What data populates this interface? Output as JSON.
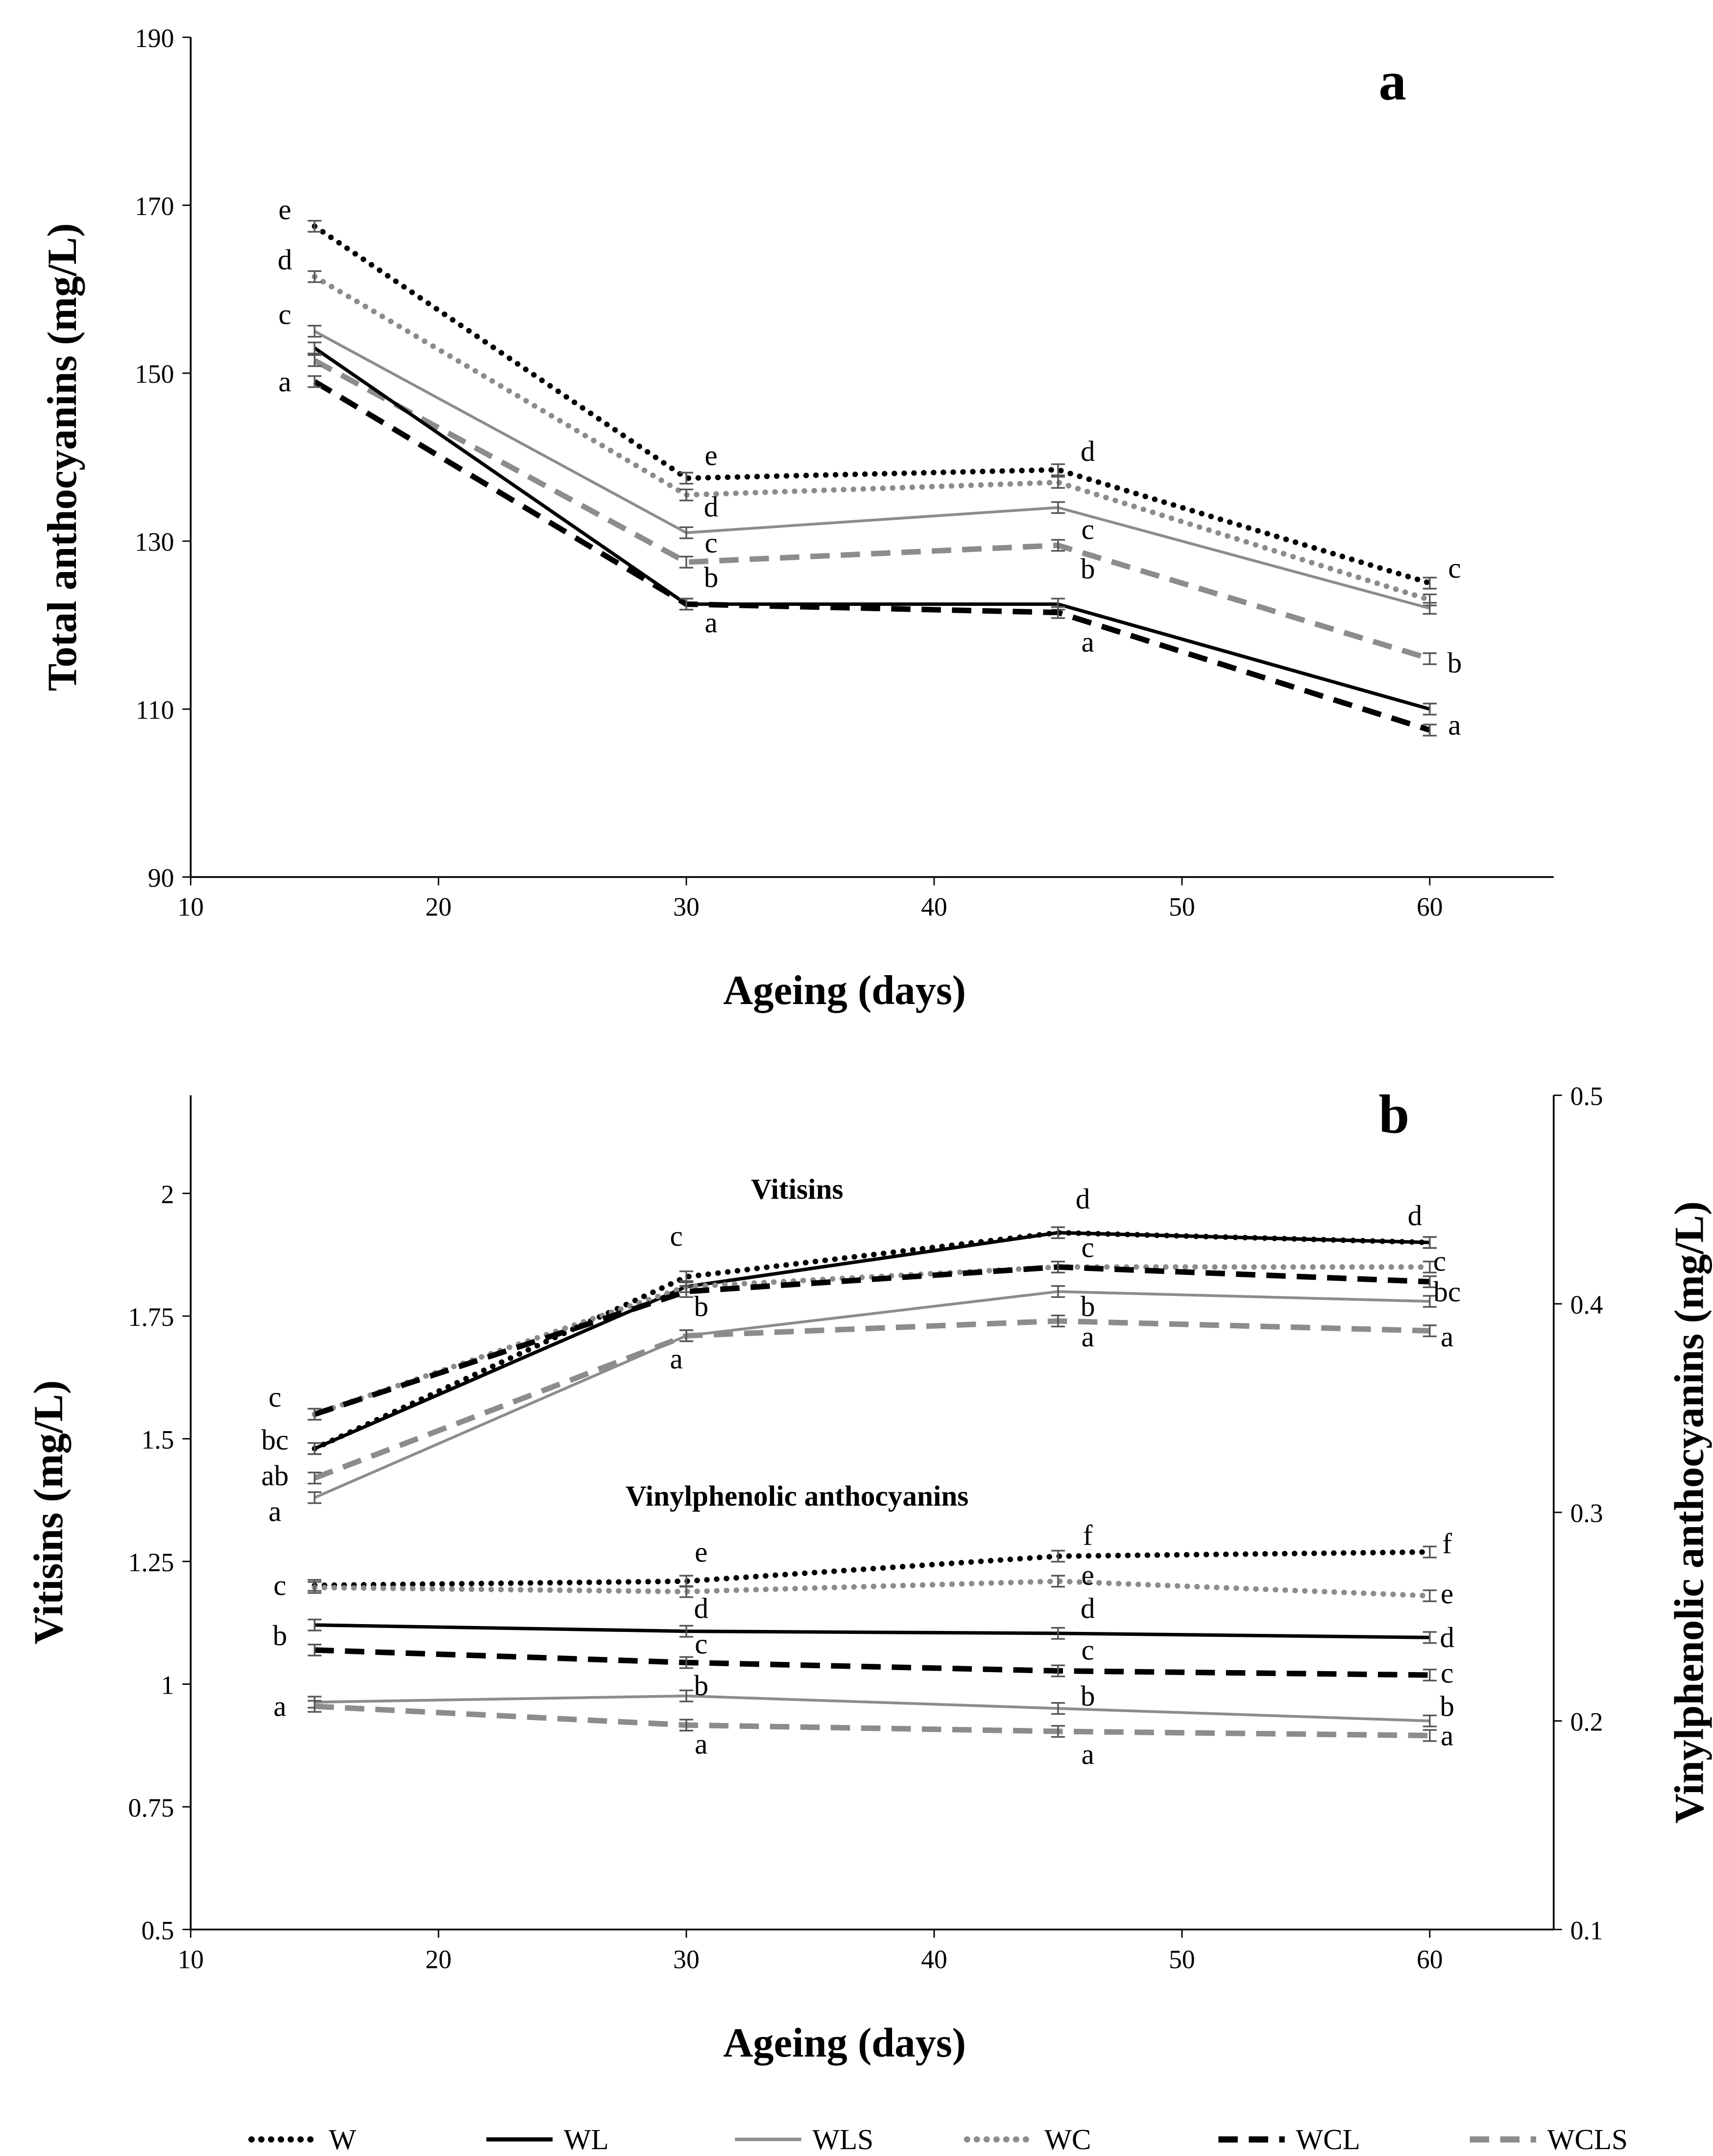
{
  "legend": [
    "W",
    "WL",
    "WLS",
    "WC",
    "WCL",
    "WCLS"
  ],
  "styles": {
    "W": {
      "color": "#000000",
      "dash": "dot"
    },
    "WL": {
      "color": "#000000",
      "dash": "solid"
    },
    "WLS": {
      "color": "#8c8c8c",
      "dash": "solid"
    },
    "WC": {
      "color": "#8c8c8c",
      "dash": "dot"
    },
    "WCL": {
      "color": "#000000",
      "dash": "dash"
    },
    "WCLS": {
      "color": "#8c8c8c",
      "dash": "dash"
    }
  },
  "chart_data": [
    {
      "type": "line",
      "panel_label": "a",
      "xlabel": "Ageing (days)",
      "ylabel": "Total anthocyanins (mg/L)",
      "xlim": [
        10,
        65
      ],
      "xticks": [
        10,
        20,
        30,
        40,
        50,
        60
      ],
      "ylim": [
        90,
        190
      ],
      "yticks": [
        90,
        110,
        130,
        150,
        170,
        190
      ],
      "x": [
        15,
        30,
        45,
        60
      ],
      "series": [
        {
          "name": "W",
          "values": [
            167.5,
            137.5,
            138.5,
            125
          ]
        },
        {
          "name": "WC",
          "values": [
            161.5,
            135.5,
            137,
            123
          ]
        },
        {
          "name": "WLS",
          "values": [
            155,
            131,
            134,
            122
          ]
        },
        {
          "name": "WCLS",
          "values": [
            151.5,
            127.5,
            129.5,
            116
          ]
        },
        {
          "name": "WL",
          "values": [
            153,
            122.5,
            122.5,
            110
          ]
        },
        {
          "name": "WCL",
          "values": [
            149,
            122.5,
            121.5,
            107.5
          ]
        }
      ],
      "annotations": [
        {
          "x": 13.8,
          "y": 169.5,
          "text": "e"
        },
        {
          "x": 13.8,
          "y": 163.5,
          "text": "d"
        },
        {
          "x": 13.8,
          "y": 157,
          "text": "c"
        },
        {
          "x": 13.8,
          "y": 149,
          "text": "a"
        },
        {
          "x": 31,
          "y": 140.2,
          "text": "e"
        },
        {
          "x": 31,
          "y": 134.1,
          "text": "d"
        },
        {
          "x": 31,
          "y": 129.8,
          "text": "c"
        },
        {
          "x": 31,
          "y": 125.7,
          "text": "b"
        },
        {
          "x": 31,
          "y": 120.3,
          "text": "a"
        },
        {
          "x": 46.2,
          "y": 140.7,
          "text": "d"
        },
        {
          "x": 46.2,
          "y": 131.4,
          "text": "c"
        },
        {
          "x": 46.2,
          "y": 126.7,
          "text": "b"
        },
        {
          "x": 46.2,
          "y": 118,
          "text": "a"
        },
        {
          "x": 61,
          "y": 126.8,
          "text": "c"
        },
        {
          "x": 61,
          "y": 115.5,
          "text": "b"
        },
        {
          "x": 61,
          "y": 108.1,
          "text": "a"
        }
      ]
    },
    {
      "type": "line",
      "panel_label": "b",
      "xlabel": "Ageing (days)",
      "ylabel": "Vitisins (mg/L)",
      "ylabel_right": "Vinylphenolic anthocyanins (mg/L)",
      "xlim": [
        10,
        65
      ],
      "xticks": [
        10,
        20,
        30,
        40,
        50,
        60
      ],
      "ylim": [
        0.5,
        2.2
      ],
      "yticks": [
        "0.5",
        "0.75",
        "1",
        "1.25",
        "1.5",
        "1.75",
        "2"
      ],
      "ylim_right": [
        0.1,
        0.5
      ],
      "yticks_right": [
        "0.1",
        "0.2",
        "0.3",
        "0.4",
        "0.5"
      ],
      "group_titles": [
        "Vitisins",
        "Vinylphenolic anthocyanins"
      ],
      "x": [
        15,
        30,
        45,
        60
      ],
      "series": [
        {
          "name": "W",
          "group": "Vitisins",
          "axis": "left",
          "values": [
            1.48,
            1.83,
            1.92,
            1.9
          ]
        },
        {
          "name": "WL",
          "group": "Vitisins",
          "axis": "left",
          "values": [
            1.48,
            1.81,
            1.92,
            1.9
          ]
        },
        {
          "name": "WLS",
          "group": "Vitisins",
          "axis": "left",
          "values": [
            1.38,
            1.71,
            1.8,
            1.78
          ]
        },
        {
          "name": "WC",
          "group": "Vitisins",
          "axis": "left",
          "values": [
            1.55,
            1.81,
            1.85,
            1.85
          ]
        },
        {
          "name": "WCL",
          "group": "Vitisins",
          "axis": "left",
          "values": [
            1.55,
            1.8,
            1.85,
            1.82
          ]
        },
        {
          "name": "WCLS",
          "group": "Vitisins",
          "axis": "left",
          "values": [
            1.42,
            1.71,
            1.74,
            1.72
          ]
        },
        {
          "name": "W",
          "group": "Vinylphenolic anthocyanins",
          "axis": "right",
          "values": [
            0.265,
            0.267,
            0.279,
            0.281
          ]
        },
        {
          "name": "WC",
          "group": "Vinylphenolic anthocyanins",
          "axis": "right",
          "values": [
            0.264,
            0.262,
            0.267,
            0.26
          ]
        },
        {
          "name": "WL",
          "group": "Vinylphenolic anthocyanins",
          "axis": "right",
          "values": [
            0.246,
            0.243,
            0.242,
            0.24
          ]
        },
        {
          "name": "WCL",
          "group": "Vinylphenolic anthocyanins",
          "axis": "right",
          "values": [
            0.234,
            0.228,
            0.224,
            0.222
          ]
        },
        {
          "name": "WLS",
          "group": "Vinylphenolic anthocyanins",
          "axis": "right",
          "values": [
            0.209,
            0.212,
            0.206,
            0.2
          ]
        },
        {
          "name": "WCLS",
          "group": "Vinylphenolic anthocyanins",
          "axis": "right",
          "values": [
            0.207,
            0.198,
            0.195,
            0.193
          ]
        }
      ],
      "annotations": [
        {
          "x": 13.4,
          "y": 1.585,
          "axis": "left",
          "text": "c"
        },
        {
          "x": 13.4,
          "y": 1.498,
          "axis": "left",
          "text": "bc"
        },
        {
          "x": 13.4,
          "y": 1.425,
          "axis": "left",
          "text": "ab"
        },
        {
          "x": 13.4,
          "y": 1.352,
          "axis": "left",
          "text": "a"
        },
        {
          "x": 29.6,
          "y": 1.913,
          "axis": "left",
          "text": "c"
        },
        {
          "x": 30.6,
          "y": 1.77,
          "axis": "left",
          "text": "b"
        },
        {
          "x": 29.6,
          "y": 1.663,
          "axis": "left",
          "text": "a"
        },
        {
          "x": 46,
          "y": 1.989,
          "axis": "left",
          "text": "d"
        },
        {
          "x": 46.2,
          "y": 1.89,
          "axis": "left",
          "text": "c"
        },
        {
          "x": 46.2,
          "y": 1.77,
          "axis": "left",
          "text": "b"
        },
        {
          "x": 46.2,
          "y": 1.708,
          "axis": "left",
          "text": "a"
        },
        {
          "x": 59.4,
          "y": 1.955,
          "axis": "left",
          "text": "d"
        },
        {
          "x": 60.4,
          "y": 1.862,
          "axis": "left",
          "text": "c"
        },
        {
          "x": 60.7,
          "y": 1.8,
          "axis": "left",
          "text": "bc"
        },
        {
          "x": 60.7,
          "y": 1.708,
          "axis": "left",
          "text": "a"
        },
        {
          "x": 13.6,
          "y": 0.265,
          "axis": "right",
          "text": "c"
        },
        {
          "x": 13.6,
          "y": 0.241,
          "axis": "right",
          "text": "b"
        },
        {
          "x": 13.6,
          "y": 0.207,
          "axis": "right",
          "text": "a"
        },
        {
          "x": 30.6,
          "y": 0.281,
          "axis": "right",
          "text": "e"
        },
        {
          "x": 30.6,
          "y": 0.254,
          "axis": "right",
          "text": "d"
        },
        {
          "x": 30.6,
          "y": 0.237,
          "axis": "right",
          "text": "c"
        },
        {
          "x": 30.6,
          "y": 0.217,
          "axis": "right",
          "text": "b"
        },
        {
          "x": 30.6,
          "y": 0.189,
          "axis": "right",
          "text": "a"
        },
        {
          "x": 46.2,
          "y": 0.289,
          "axis": "right",
          "text": "f"
        },
        {
          "x": 46.2,
          "y": 0.27,
          "axis": "right",
          "text": "e"
        },
        {
          "x": 46.2,
          "y": 0.254,
          "axis": "right",
          "text": "d"
        },
        {
          "x": 46.2,
          "y": 0.234,
          "axis": "right",
          "text": "c"
        },
        {
          "x": 46.2,
          "y": 0.212,
          "axis": "right",
          "text": "b"
        },
        {
          "x": 46.2,
          "y": 0.184,
          "axis": "right",
          "text": "a"
        },
        {
          "x": 60.7,
          "y": 0.285,
          "axis": "right",
          "text": "f"
        },
        {
          "x": 60.7,
          "y": 0.261,
          "axis": "right",
          "text": "e"
        },
        {
          "x": 60.7,
          "y": 0.24,
          "axis": "right",
          "text": "d"
        },
        {
          "x": 60.7,
          "y": 0.223,
          "axis": "right",
          "text": "c"
        },
        {
          "x": 60.7,
          "y": 0.207,
          "axis": "right",
          "text": "b"
        },
        {
          "x": 60.7,
          "y": 0.193,
          "axis": "right",
          "text": "a"
        }
      ]
    }
  ]
}
